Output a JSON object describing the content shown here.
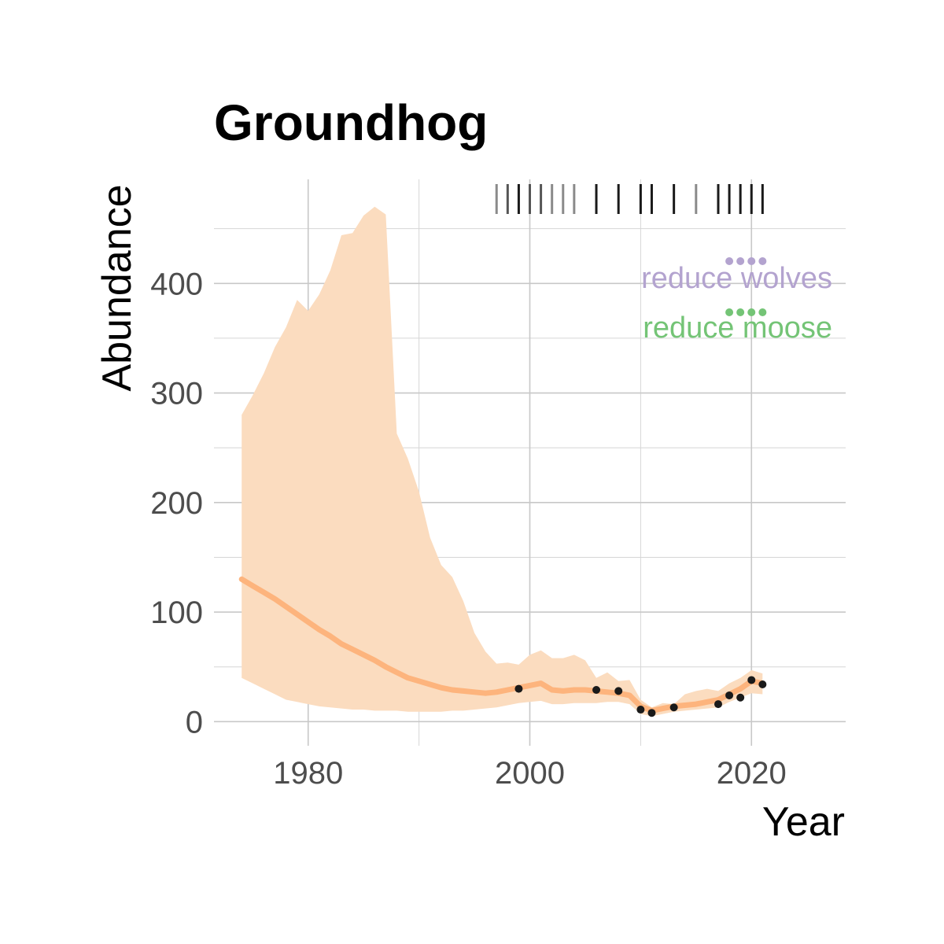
{
  "chart_data": {
    "type": "line",
    "title": "Groundhog",
    "xlabel": "Year",
    "ylabel": "Abundance",
    "xlim": [
      1971.5,
      2028.5
    ],
    "ylim": [
      -22,
      495
    ],
    "x_ticks": [
      1980,
      2000,
      2020
    ],
    "x_tick_labels": [
      "1980",
      "2000",
      "2020"
    ],
    "y_ticks": [
      0,
      100,
      200,
      300,
      400
    ],
    "y_tick_labels": [
      "0",
      "100",
      "200",
      "300",
      "400"
    ],
    "grid": true,
    "colors": {
      "line": "#fdb47d",
      "ribbon": "#fbdcbf",
      "points": "#1a1a1a",
      "grid": "#c8c8c8",
      "wolves": "#b3a3cf",
      "moose": "#74c476"
    },
    "series": [
      {
        "kind": "estimate",
        "x": [
          1974,
          1975,
          1976,
          1977,
          1978,
          1979,
          1980,
          1981,
          1982,
          1983,
          1984,
          1985,
          1986,
          1987,
          1988,
          1989,
          1990,
          1991,
          1992,
          1993,
          1994,
          1995,
          1996,
          1997,
          1998,
          1999,
          2000,
          2001,
          2002,
          2003,
          2004,
          2005,
          2006,
          2007,
          2008,
          2009,
          2010,
          2011,
          2012,
          2013,
          2014,
          2015,
          2016,
          2017,
          2018,
          2019,
          2020,
          2021
        ],
        "y": [
          130,
          124,
          118,
          112,
          105,
          98,
          91,
          84,
          78,
          71,
          66,
          61,
          56,
          50,
          45,
          40,
          37,
          34,
          31,
          29,
          28,
          27,
          26,
          27,
          29,
          31,
          33,
          35,
          29,
          28,
          29,
          29,
          28,
          27,
          26,
          24,
          14,
          10,
          12,
          14,
          15,
          16,
          18,
          20,
          25,
          30,
          37,
          35
        ]
      },
      {
        "kind": "ribbon_lower",
        "x": [
          1974,
          1975,
          1976,
          1977,
          1978,
          1979,
          1980,
          1981,
          1982,
          1983,
          1984,
          1985,
          1986,
          1987,
          1988,
          1989,
          1990,
          1991,
          1992,
          1993,
          1994,
          1995,
          1996,
          1997,
          1998,
          1999,
          2000,
          2001,
          2002,
          2003,
          2004,
          2005,
          2006,
          2007,
          2008,
          2009,
          2010,
          2011,
          2012,
          2013,
          2014,
          2015,
          2016,
          2017,
          2018,
          2019,
          2020,
          2021
        ],
        "y": [
          40,
          35,
          30,
          25,
          20,
          18,
          16,
          14,
          13,
          12,
          11,
          11,
          10,
          10,
          10,
          9,
          9,
          9,
          9,
          10,
          10,
          11,
          12,
          13,
          15,
          17,
          18,
          19,
          16,
          16,
          17,
          17,
          17,
          18,
          18,
          16,
          7,
          5,
          7,
          9,
          10,
          11,
          12,
          13,
          18,
          22,
          26,
          25
        ]
      },
      {
        "kind": "ribbon_upper",
        "x": [
          1974,
          1975,
          1976,
          1977,
          1978,
          1979,
          1980,
          1981,
          1982,
          1983,
          1984,
          1985,
          1986,
          1987,
          1988,
          1989,
          1990,
          1991,
          1992,
          1993,
          1994,
          1995,
          1996,
          1997,
          1998,
          1999,
          2000,
          2001,
          2002,
          2003,
          2004,
          2005,
          2006,
          2007,
          2008,
          2009,
          2010,
          2011,
          2012,
          2013,
          2014,
          2015,
          2016,
          2017,
          2018,
          2019,
          2020,
          2021
        ],
        "y": [
          280,
          298,
          318,
          342,
          360,
          385,
          375,
          390,
          412,
          444,
          446,
          462,
          470,
          463,
          263,
          240,
          210,
          168,
          143,
          132,
          110,
          81,
          64,
          53,
          54,
          52,
          61,
          65,
          58,
          58,
          61,
          56,
          40,
          45,
          37,
          38,
          20,
          13,
          17,
          16,
          25,
          28,
          30,
          28,
          35,
          40,
          47,
          44
        ]
      },
      {
        "kind": "observed",
        "x": [
          1999,
          2006,
          2008,
          2010,
          2011,
          2013,
          2017,
          2018,
          2019,
          2020,
          2021
        ],
        "y": [
          30,
          29,
          28,
          11,
          8,
          13,
          16,
          24,
          22,
          38,
          34
        ]
      }
    ],
    "event_ticks": [
      {
        "x": 1997,
        "shade": "light"
      },
      {
        "x": 1998,
        "shade": "medium"
      },
      {
        "x": 1999,
        "shade": "dark"
      },
      {
        "x": 2000,
        "shade": "medium"
      },
      {
        "x": 2001,
        "shade": "medium"
      },
      {
        "x": 2002,
        "shade": "light"
      },
      {
        "x": 2003,
        "shade": "light"
      },
      {
        "x": 2004,
        "shade": "light"
      },
      {
        "x": 2006,
        "shade": "dark"
      },
      {
        "x": 2008,
        "shade": "dark"
      },
      {
        "x": 2010,
        "shade": "dark"
      },
      {
        "x": 2011,
        "shade": "dark"
      },
      {
        "x": 2013,
        "shade": "dark"
      },
      {
        "x": 2015,
        "shade": "light"
      },
      {
        "x": 2017,
        "shade": "dark"
      },
      {
        "x": 2018,
        "shade": "dark"
      },
      {
        "x": 2019,
        "shade": "dark"
      },
      {
        "x": 2020,
        "shade": "dark"
      },
      {
        "x": 2021,
        "shade": "dark"
      }
    ],
    "shades": {
      "light": "#8a8a8a",
      "medium": "#555555",
      "dark": "#1a1a1a"
    },
    "annotations": [
      {
        "label": "reduce wolves",
        "color_key": "wolves",
        "dot_years": [
          2018,
          2019,
          2020,
          2021
        ]
      },
      {
        "label": "reduce moose",
        "color_key": "moose",
        "dot_years": [
          2018,
          2019,
          2020,
          2021
        ]
      }
    ]
  }
}
